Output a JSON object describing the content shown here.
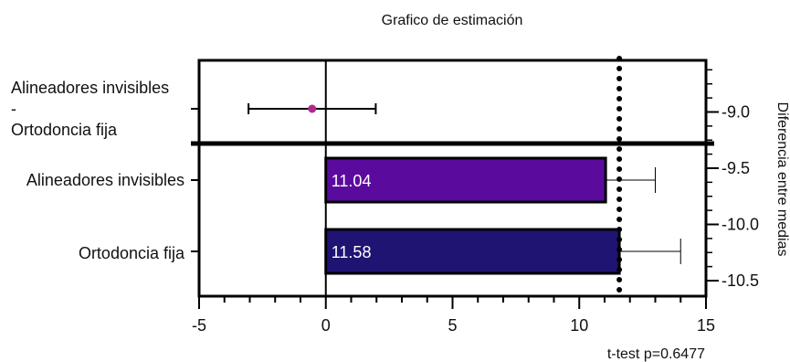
{
  "chart_data": {
    "type": "bar",
    "title": "Grafico de estimación",
    "footnote": "t-test p=0.6477",
    "x_axis": {
      "range": [
        -5,
        15
      ],
      "ticks": [
        -5,
        0,
        5,
        10,
        15
      ],
      "tick_labels": [
        "-5",
        "0",
        "5",
        "10",
        "15"
      ]
    },
    "right_axis": {
      "label": "Diferencia entre medias",
      "ticks": [
        -9.0,
        -9.5,
        -10.0,
        -10.5
      ],
      "tick_labels": [
        "-9.0",
        "-9.5",
        "-10.0",
        "-10.5"
      ]
    },
    "difference": {
      "label_lines": [
        "Alineadores invisibles",
        "-",
        "Ortodoncia fija"
      ],
      "estimate": -0.54,
      "ci": [
        -3.05,
        1.97
      ],
      "color": "#b0288f"
    },
    "reference_line": {
      "value": 11.58
    },
    "bars": [
      {
        "label": "Alineadores invisibles",
        "value": 11.04,
        "value_label": "11.04",
        "error_upper": 13.0,
        "color": "#5b0a9e"
      },
      {
        "label": "Ortodoncia fija",
        "value": 11.58,
        "value_label": "11.58",
        "error_upper": 14.0,
        "color": "#1f1472"
      }
    ]
  }
}
